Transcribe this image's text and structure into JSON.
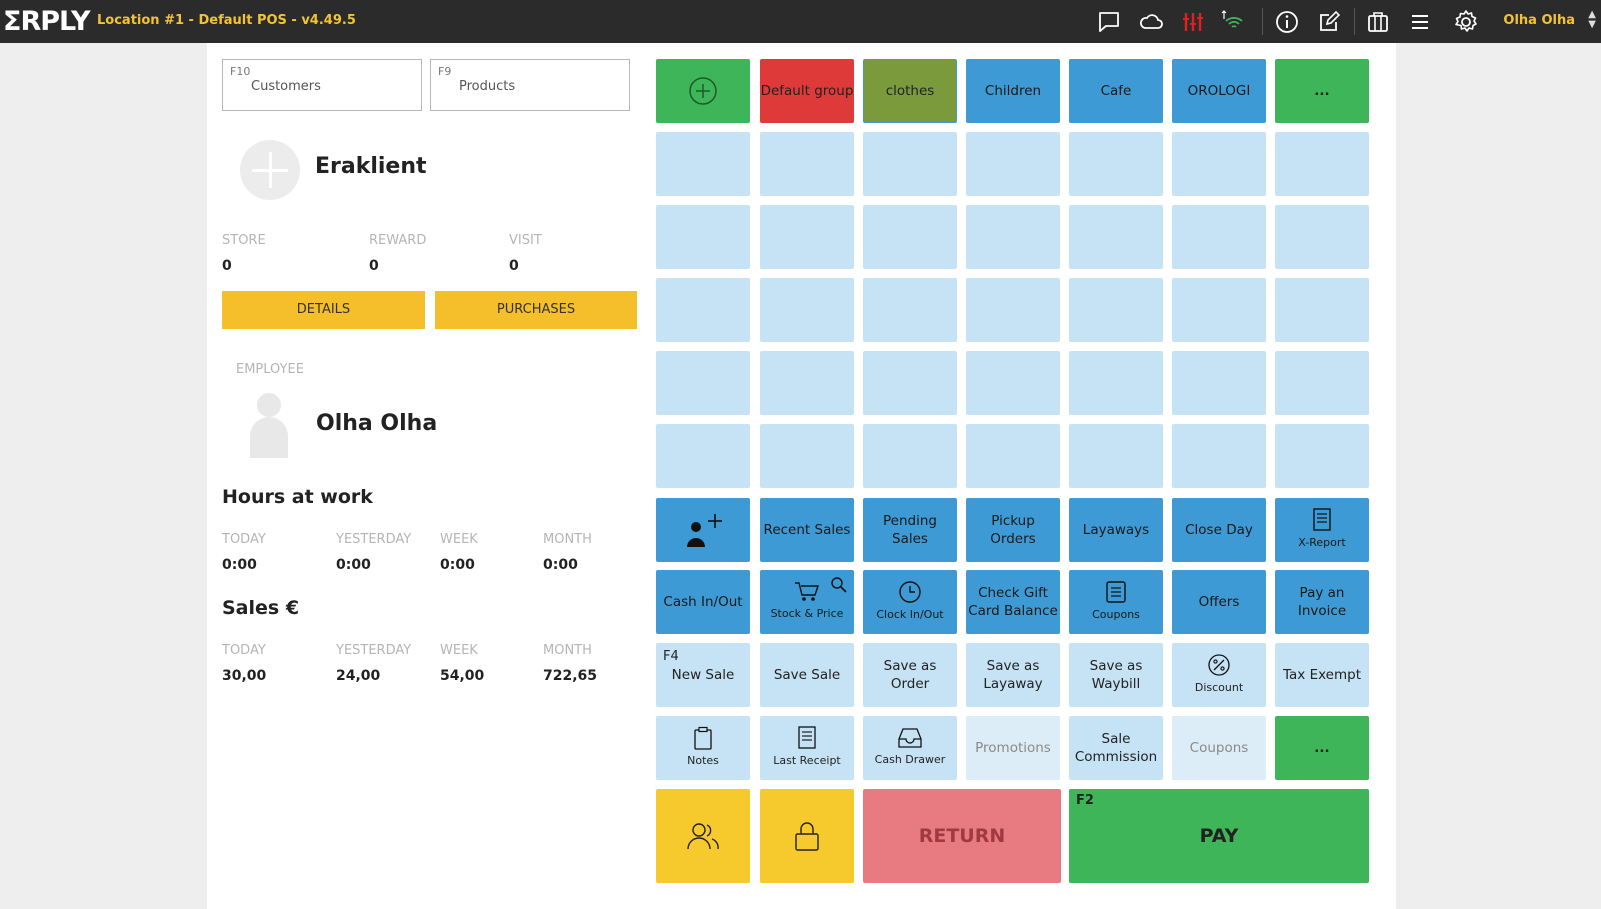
{
  "header": {
    "logo": "ΣRPLY",
    "location_title": "Location #1 - Default POS - v4.49.5",
    "user_name": "Olha Olha",
    "icons": [
      "chat-icon",
      "cloud-icon",
      "equalizer-icon",
      "signal-icon",
      "info-icon",
      "edit-icon",
      "gift-icon",
      "menu-icon",
      "gear-icon"
    ],
    "accent_color": "#f4c430"
  },
  "search": {
    "customers_key": "F10",
    "customers_label": "Customers",
    "products_key": "F9",
    "products_label": "Products"
  },
  "customer": {
    "name": "Eraklient",
    "stats": [
      {
        "label": "STORE",
        "value": "0"
      },
      {
        "label": "REWARD",
        "value": "0"
      },
      {
        "label": "VISIT",
        "value": "0"
      }
    ],
    "details_label": "DETAILS",
    "purchases_label": "PURCHASES"
  },
  "employee": {
    "label": "EMPLOYEE",
    "name": "Olha Olha"
  },
  "hours": {
    "title": "Hours at work",
    "items": [
      {
        "label": "TODAY",
        "value": "0:00"
      },
      {
        "label": "YESTERDAY",
        "value": "0:00"
      },
      {
        "label": "WEEK",
        "value": "0:00"
      },
      {
        "label": "MONTH",
        "value": "0:00"
      }
    ]
  },
  "sales": {
    "title": "Sales €",
    "items": [
      {
        "label": "TODAY",
        "value": "30,00"
      },
      {
        "label": "YESTERDAY",
        "value": "24,00"
      },
      {
        "label": "WEEK",
        "value": "54,00"
      },
      {
        "label": "MONTH",
        "value": "722,65"
      }
    ]
  },
  "groups": {
    "default_group": "Default group",
    "clothes": "clothes",
    "children": "Children",
    "cafe": "Cafe",
    "orologi": "OROLOGI",
    "more": "..."
  },
  "actions": {
    "recent_sales": "Recent Sales",
    "pending_sales_1": "Pending",
    "pending_sales_2": "Sales",
    "pickup_orders_1": "Pickup",
    "pickup_orders_2": "Orders",
    "layaways": "Layaways",
    "close_day": "Close Day",
    "x_report": "X-Report",
    "cash_in_out": "Cash In/Out",
    "stock_price": "Stock & Price",
    "clock_in_out": "Clock In/Out",
    "check_gift_1": "Check Gift",
    "check_gift_2": "Card Balance",
    "coupons_icon_label": "Coupons",
    "offers": "Offers",
    "pay_invoice_1": "Pay an",
    "pay_invoice_2": "Invoice",
    "new_sale_key": "F4",
    "new_sale": "New Sale",
    "save_sale": "Save Sale",
    "save_order_1": "Save as",
    "save_order_2": "Order",
    "save_layaway_1": "Save as",
    "save_layaway_2": "Layaway",
    "save_waybill_1": "Save as",
    "save_waybill_2": "Waybill",
    "discount": "Discount",
    "tax_exempt": "Tax Exempt",
    "notes": "Notes",
    "last_receipt": "Last Receipt",
    "cash_drawer": "Cash Drawer",
    "promotions": "Promotions",
    "sale_commission_1": "Sale",
    "sale_commission_2": "Commission",
    "coupons": "Coupons",
    "more": "...",
    "return": "RETURN",
    "pay_key": "F2",
    "pay": "PAY"
  }
}
